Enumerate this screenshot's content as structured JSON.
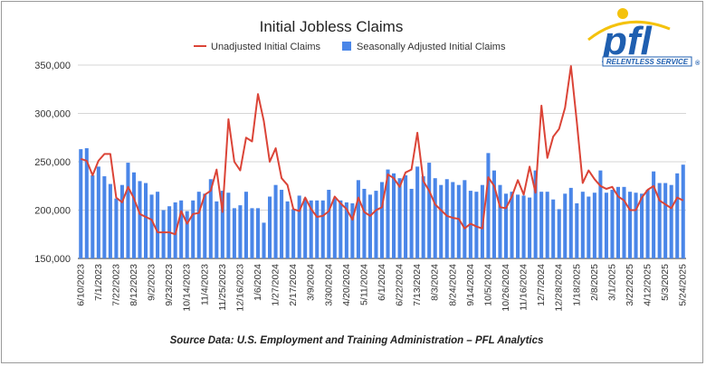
{
  "colors": {
    "bar": "#4a86e8",
    "line": "#db4437",
    "grid": "#d6d6d6",
    "logo_blue": "#1f5fb0",
    "logo_yellow": "#f4c20d",
    "logo_border": "#1f5fb0"
  },
  "source": "Source Data: U.S. Employment and Training Administration – PFL Analytics",
  "logo": {
    "icon": "pfl-logo-icon",
    "text": "pfl",
    "tagline": "RELENTLESS SERVICE",
    "mark": "®"
  },
  "chart_data": {
    "type": "bar",
    "title": "Initial Jobless Claims",
    "legend_placement": "top",
    "grid": true,
    "ylim": [
      150000,
      350000
    ],
    "y_ticks": [
      "150,000",
      "200,000",
      "250,000",
      "300,000",
      "350,000"
    ],
    "x_tick_labels": [
      "6/10/2023",
      "7/1/2023",
      "7/22/2023",
      "8/12/2023",
      "9/2/2023",
      "9/23/2023",
      "10/14/2023",
      "11/4/2023",
      "11/25/2023",
      "12/16/2023",
      "1/6/2024",
      "1/27/2024",
      "2/17/2024",
      "3/9/2024",
      "3/30/2024",
      "4/20/2024",
      "5/11/2024",
      "6/1/2024",
      "6/22/2024",
      "7/13/2024",
      "8/3/2024",
      "8/24/2024",
      "9/14/2024",
      "10/5/2024",
      "10/26/2024",
      "11/16/2024",
      "12/7/2024",
      "12/28/2024",
      "1/18/2025",
      "2/8/2025",
      "3/1/2025",
      "3/22/2025",
      "4/12/2025",
      "5/3/2025",
      "5/24/2025"
    ],
    "x_start": "6/10/2023",
    "x_step_days": 7,
    "series": [
      {
        "name": "Seasonally Adjusted Initial Claims",
        "kind": "bar",
        "values": [
          263000,
          264000,
          236000,
          245000,
          235000,
          227000,
          212000,
          226000,
          249000,
          239000,
          230000,
          228000,
          216000,
          219000,
          200000,
          204000,
          208000,
          210000,
          199000,
          210000,
          219000,
          217000,
          232000,
          209000,
          220000,
          218000,
          202000,
          205000,
          219000,
          202000,
          202000,
          187000,
          214000,
          226000,
          221000,
          209000,
          201000,
          215000,
          212000,
          210000,
          210000,
          210000,
          221000,
          212000,
          210000,
          208000,
          207000,
          231000,
          222000,
          216000,
          220000,
          229000,
          242000,
          238000,
          233000,
          236000,
          222000,
          245000,
          235000,
          249000,
          233000,
          226000,
          232000,
          229000,
          226000,
          231000,
          220000,
          219000,
          226000,
          259000,
          241000,
          226000,
          217000,
          219000,
          216000,
          215000,
          213000,
          241000,
          219000,
          219000,
          211000,
          201000,
          217000,
          223000,
          207000,
          219000,
          214000,
          218000,
          241000,
          218000,
          221000,
          224000,
          224000,
          219000,
          218000,
          217000,
          221000,
          240000,
          228000,
          228000,
          226000,
          238000,
          247000
        ]
      },
      {
        "name": "Unadjusted Initial Claims",
        "kind": "line",
        "values": [
          253000,
          251000,
          236000,
          251000,
          258000,
          258000,
          213000,
          208000,
          224000,
          212000,
          196000,
          193000,
          190000,
          177000,
          177000,
          177000,
          175000,
          199000,
          186000,
          196000,
          197000,
          216000,
          220000,
          242000,
          198000,
          294000,
          250000,
          241000,
          275000,
          271000,
          320000,
          292000,
          250000,
          264000,
          233000,
          226000,
          201000,
          199000,
          213000,
          201000,
          193000,
          194000,
          199000,
          214000,
          207000,
          201000,
          190000,
          213000,
          198000,
          194000,
          200000,
          203000,
          237000,
          233000,
          224000,
          239000,
          242000,
          280000,
          230000,
          220000,
          206000,
          200000,
          194000,
          192000,
          191000,
          181000,
          186000,
          183000,
          181000,
          234000,
          225000,
          203000,
          202000,
          214000,
          231000,
          216000,
          245000,
          218000,
          308000,
          254000,
          276000,
          284000,
          306000,
          349000,
          291000,
          228000,
          241000,
          232000,
          225000,
          222000,
          224000,
          214000,
          210000,
          200000,
          200000,
          213000,
          221000,
          225000,
          210000,
          206000,
          202000,
          213000,
          210000
        ]
      }
    ]
  }
}
